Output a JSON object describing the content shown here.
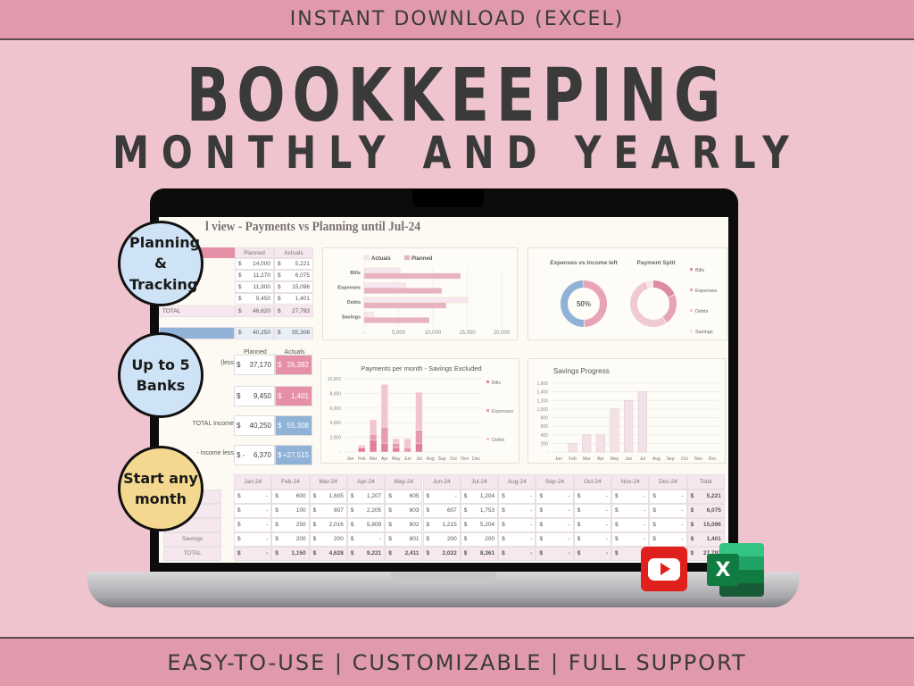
{
  "banner_top": "INSTANT DOWNLOAD (EXCEL)",
  "title": "BOOKKEEPING",
  "subtitle": "MONTHLY AND YEARLY",
  "banner_bottom": "EASY-TO-USE | CUSTOMIZABLE | FULL SUPPORT",
  "bubbles": [
    {
      "text": "Planning & Tracking",
      "color": "#cfe3f6"
    },
    {
      "text": "Up to 5 Banks",
      "color": "#cfe3f6"
    },
    {
      "text": "Start any month",
      "color": "#f4d88f"
    }
  ],
  "icons": [
    "youtube-icon",
    "excel-icon"
  ],
  "sheet": {
    "title": "l view - Payments vs Planning until Jul-24",
    "summary": {
      "headers": [
        "Planned",
        "Actuals"
      ],
      "rows": [
        [
          "$",
          "14,000",
          "$",
          "5,221"
        ],
        [
          "$",
          "11,270",
          "$",
          "6,075"
        ],
        [
          "$",
          "11,900",
          "$",
          "15,096"
        ],
        [
          "$",
          "9,450",
          "$",
          "1,401"
        ]
      ],
      "total_label": "TOTAL",
      "total": [
        "$",
        "46,620",
        "$",
        "27,793"
      ],
      "income": [
        "$",
        "40,250",
        "$",
        "55,308"
      ]
    },
    "kpis": {
      "headers": [
        "Planned",
        "Actuals"
      ],
      "labels": [
        "(less",
        "",
        "TOTAL Income",
        "- Income less"
      ],
      "rows": [
        [
          "$",
          "37,170",
          "$",
          "26,392"
        ],
        [
          "$",
          "9,450",
          "$",
          "1,401"
        ],
        [
          "$",
          "40,250",
          "$",
          "55,308"
        ],
        [
          "$ -",
          "6,370",
          "$",
          "+27,515"
        ]
      ]
    },
    "monthly_table": {
      "headers": [
        "Jan-24",
        "Feb-24",
        "Mar-24",
        "Apr-24",
        "May-24",
        "Jun-24",
        "Jul-24",
        "Aug-24",
        "Sep-24",
        "Oct-24",
        "Nov-24",
        "Dec-24",
        "Total"
      ],
      "row_labels": [
        "",
        "",
        "",
        "Savings",
        "TOTAL"
      ],
      "rows": [
        [
          "-",
          "600",
          "1,605",
          "1,207",
          "605",
          "-",
          "1,204",
          "-",
          "-",
          "-",
          "-",
          "-",
          "5,221"
        ],
        [
          "-",
          "100",
          "807",
          "2,205",
          "603",
          "607",
          "1,753",
          "-",
          "-",
          "-",
          "-",
          "-",
          "6,075"
        ],
        [
          "-",
          "250",
          "2,016",
          "5,809",
          "602",
          "1,215",
          "5,204",
          "-",
          "-",
          "-",
          "-",
          "-",
          "15,096"
        ],
        [
          "-",
          "200",
          "200",
          "-",
          "601",
          "200",
          "200",
          "-",
          "-",
          "-",
          "-",
          "-",
          "1,401"
        ],
        [
          "-",
          "1,150",
          "4,628",
          "9,221",
          "2,411",
          "2,022",
          "8,361",
          "-",
          "-",
          "-",
          "-",
          "-",
          "27,793"
        ]
      ]
    }
  },
  "chart_data": [
    {
      "type": "bar",
      "orientation": "horizontal",
      "categories": [
        "Bills",
        "Expenses",
        "Debts",
        "Savings"
      ],
      "series": [
        {
          "name": "Actuals",
          "values": [
            5221,
            6075,
            15096,
            1401
          ],
          "color": "#f7e6ee"
        },
        {
          "name": "Planned",
          "values": [
            14000,
            11270,
            11900,
            9450
          ],
          "color": "#e9b2c2"
        }
      ],
      "xticks": [
        "-",
        "5,000",
        "10,000",
        "15,000",
        "20,000"
      ],
      "xlim": [
        0,
        20000
      ],
      "legend": "top",
      "grid": true
    },
    {
      "type": "pie",
      "title": "Expenses vs Income left",
      "donut": true,
      "center_label": "50%",
      "values": [
        50,
        50
      ],
      "colors": [
        "#e8a4b6",
        "#8fb2d6"
      ]
    },
    {
      "type": "pie",
      "title": "Payment Split",
      "donut": true,
      "categories": [
        "Bills",
        "Expenses",
        "Debts",
        "Savings"
      ],
      "values": [
        5221,
        6075,
        15096,
        1401
      ],
      "colors": [
        "#df8aa3",
        "#e8a4b6",
        "#f0c9d4",
        "#f8e4ea"
      ],
      "legend": "right"
    },
    {
      "type": "bar",
      "stacked": true,
      "title": "Payments per month - Savings Excluded",
      "categories": [
        "Jan",
        "Feb",
        "Mar",
        "Apr",
        "May",
        "Jun",
        "Jul",
        "Aug",
        "Sep",
        "Oct",
        "Nov",
        "Dec"
      ],
      "series": [
        {
          "name": "Bills",
          "values": [
            0,
            600,
            1605,
            1207,
            605,
            0,
            1204,
            0,
            0,
            0,
            0,
            0
          ],
          "color": "#de7f9c"
        },
        {
          "name": "Expenses",
          "values": [
            0,
            100,
            807,
            2205,
            603,
            607,
            1753,
            0,
            0,
            0,
            0,
            0
          ],
          "color": "#e69bb0"
        },
        {
          "name": "Debts",
          "values": [
            0,
            250,
            2016,
            5809,
            602,
            1215,
            5204,
            0,
            0,
            0,
            0,
            0
          ],
          "color": "#f1c6d2"
        }
      ],
      "yticks": [
        "-",
        "2,000",
        "4,000",
        "6,000",
        "8,000",
        "10,000"
      ],
      "ylim": [
        0,
        10000
      ],
      "legend": "right",
      "grid": true
    },
    {
      "type": "bar",
      "title": "Savings Progress",
      "categories": [
        "Jan",
        "Feb",
        "Mar",
        "Apr",
        "May",
        "Jun",
        "Jul",
        "Aug",
        "Sep",
        "Oct",
        "Nov",
        "Dec"
      ],
      "values": [
        0,
        200,
        400,
        400,
        1000,
        1200,
        1400,
        null,
        null,
        null,
        null,
        null
      ],
      "yticks": [
        "-",
        "200",
        "400",
        "600",
        "800",
        "1,000",
        "1,200",
        "1,400",
        "1,600"
      ],
      "ylim": [
        0,
        1600
      ],
      "grid": true,
      "color": "#f3e1e8"
    }
  ]
}
